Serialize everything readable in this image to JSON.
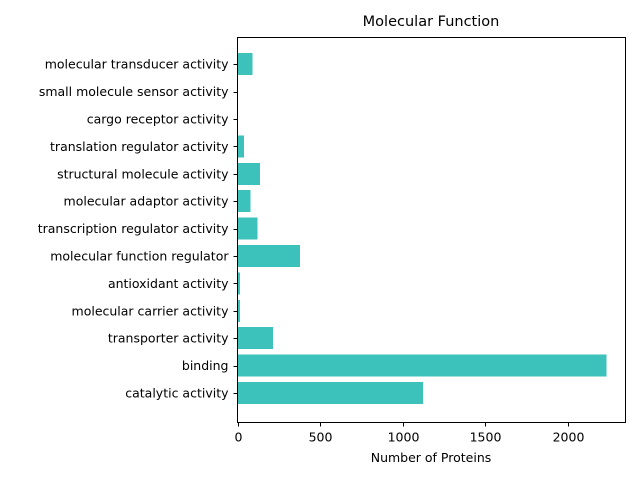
{
  "chart_data": {
    "type": "bar",
    "orientation": "horizontal",
    "title": "Molecular Function",
    "xlabel": "Number of Proteins",
    "ylabel": "",
    "xlim": [
      0,
      2350
    ],
    "xticks": [
      0,
      500,
      1000,
      1500,
      2000
    ],
    "xtick_labels": [
      "0",
      "500",
      "1000",
      "1500",
      "2000"
    ],
    "categories": [
      "catalytic activity",
      "binding",
      "transporter activity",
      "molecular carrier activity",
      "antioxidant activity",
      "molecular function regulator",
      "transcription regulator activity",
      "molecular adaptor activity",
      "structural molecule activity",
      "translation regulator activity",
      "cargo receptor activity",
      "small molecule sensor activity",
      "molecular transducer activity"
    ],
    "values": [
      1125,
      2235,
      215,
      15,
      15,
      380,
      120,
      80,
      135,
      40,
      2,
      2,
      90
    ],
    "bar_color": "#3dc1bb",
    "grid": false,
    "legend": "none"
  }
}
